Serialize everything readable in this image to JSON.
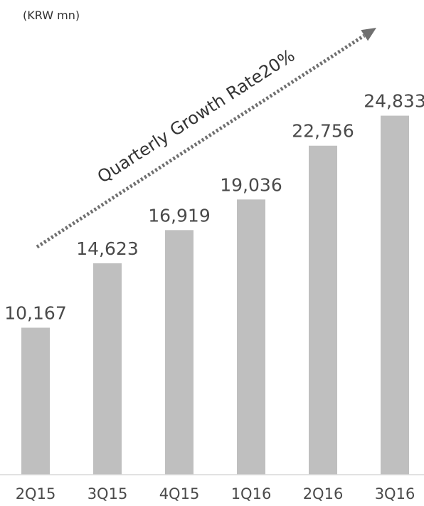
{
  "chart_data": {
    "type": "bar",
    "unit_label": "(KRW mn)",
    "categories": [
      "2Q15",
      "3Q15",
      "4Q15",
      "1Q16",
      "2Q16",
      "3Q16"
    ],
    "values": [
      10167,
      14623,
      16919,
      19036,
      22756,
      24833
    ],
    "value_labels": [
      "10,167",
      "14,623",
      "16,919",
      "19,036",
      "22,756",
      "24,833"
    ],
    "annotation": "Quarterly Growth Rate20%",
    "ylim": [
      0,
      25500
    ],
    "grid": false,
    "legend": "none",
    "colors": {
      "bar": "#bfbfbf",
      "arrow": "#6f6f6f",
      "axis": "#d9d9d9"
    }
  }
}
